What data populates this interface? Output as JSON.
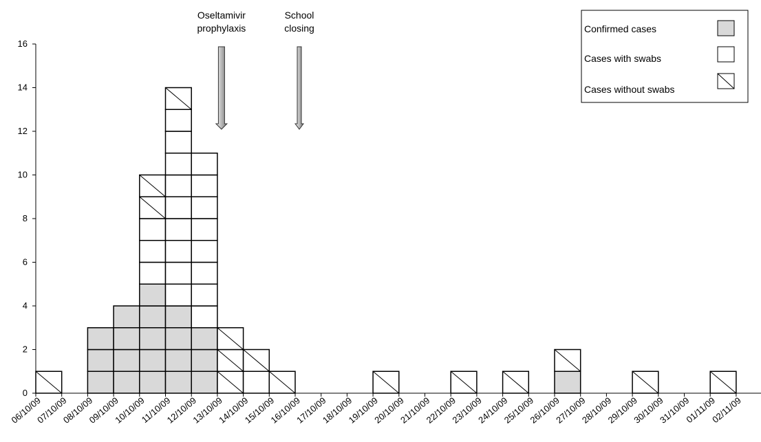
{
  "chart_data": {
    "type": "bar",
    "stacked": true,
    "categories": [
      "06/10/09",
      "07/10/09",
      "08/10/09",
      "09/10/09",
      "10/10/09",
      "11/10/09",
      "12/10/09",
      "13/10/09",
      "14/10/09",
      "15/10/09",
      "16/10/09",
      "17/10/09",
      "18/10/09",
      "19/10/09",
      "20/10/09",
      "21/10/09",
      "22/10/09",
      "23/10/09",
      "24/10/09",
      "25/10/09",
      "26/10/09",
      "27/10/09",
      "28/10/09",
      "29/10/09",
      "30/10/09",
      "31/10/09",
      "01/11/09",
      "02/11/09"
    ],
    "series": [
      {
        "name": "Confirmed cases",
        "key": "confirmed",
        "color": "#d9d9d9",
        "values": [
          0,
          0,
          3,
          4,
          5,
          4,
          3,
          0,
          0,
          0,
          0,
          0,
          0,
          0,
          0,
          0,
          0,
          0,
          0,
          0,
          1,
          0,
          0,
          0,
          0,
          0,
          0,
          0
        ]
      },
      {
        "name": "Cases with swabs",
        "key": "swabs",
        "color": "#ffffff",
        "values": [
          0,
          0,
          0,
          0,
          3,
          9,
          8,
          0,
          1,
          0,
          0,
          0,
          0,
          0,
          0,
          0,
          0,
          0,
          0,
          0,
          0,
          0,
          0,
          0,
          0,
          0,
          0,
          0
        ]
      },
      {
        "name": "Cases without swabs",
        "key": "noswabs",
        "color": "#ffffff",
        "pattern": "diagonal",
        "values": [
          1,
          0,
          0,
          0,
          2,
          1,
          0,
          3,
          1,
          1,
          0,
          0,
          0,
          1,
          0,
          0,
          1,
          0,
          1,
          0,
          1,
          0,
          0,
          1,
          0,
          0,
          1,
          0
        ]
      }
    ],
    "xlabel": "",
    "ylabel": "",
    "ylim": [
      0,
      16
    ],
    "yticks": [
      "0",
      "2",
      "4",
      "6",
      "8",
      "10",
      "12",
      "14",
      "16"
    ],
    "grid": false,
    "legend_position": "top-right",
    "annotations": [
      {
        "key": "oseltamivir",
        "lines": [
          "Oseltamivir",
          "prophylaxis"
        ],
        "x_category": "13/10/09"
      },
      {
        "key": "school",
        "lines": [
          "School",
          "closing"
        ],
        "x_category": "16/10/09"
      }
    ]
  }
}
